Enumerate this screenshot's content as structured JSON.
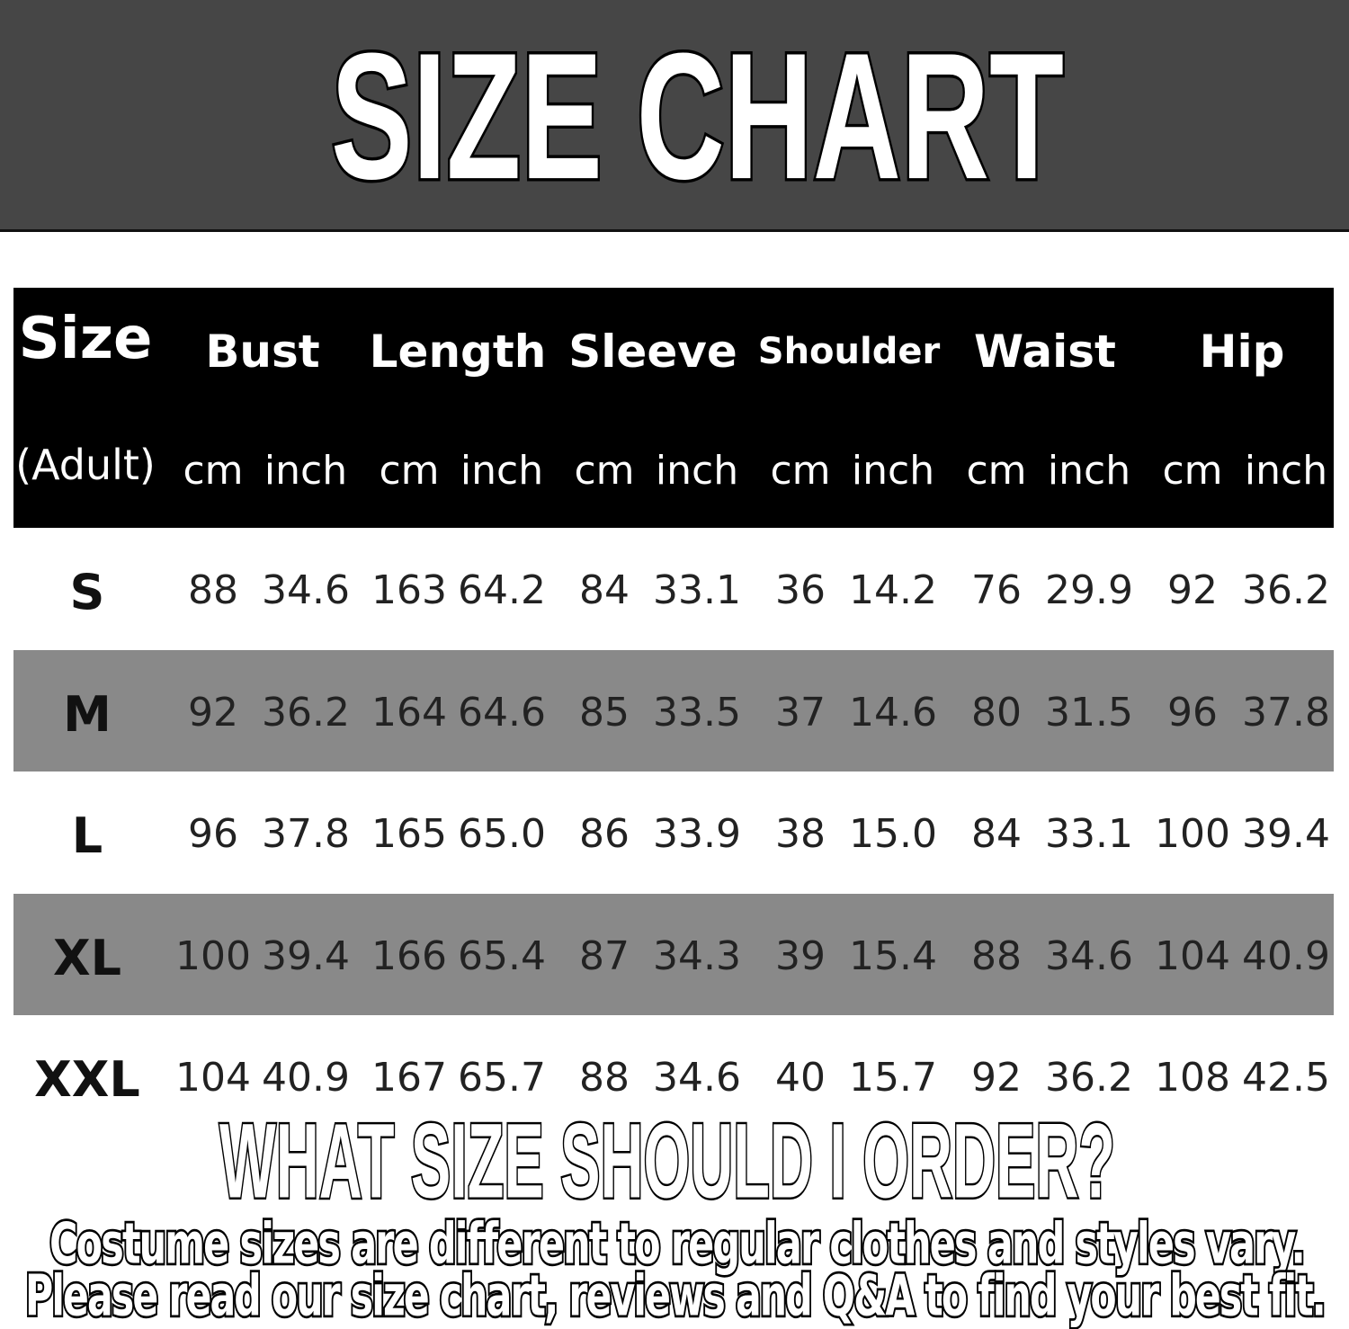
{
  "title": "SIZE CHART",
  "table": {
    "header_top": [
      "Size",
      "Bust",
      "Length",
      "Sleeve",
      "Shoulder",
      "Waist",
      "Hip"
    ],
    "header_sub_first": "(Adult)",
    "unit_cm": "cm",
    "unit_inch": "inch",
    "rows": [
      {
        "size": "S",
        "values": [
          "88",
          "34.6",
          "163",
          "64.2",
          "84",
          "33.1",
          "36",
          "14.2",
          "76",
          "29.9",
          "92",
          "36.2"
        ]
      },
      {
        "size": "M",
        "values": [
          "92",
          "36.2",
          "164",
          "64.6",
          "85",
          "33.5",
          "37",
          "14.6",
          "80",
          "31.5",
          "96",
          "37.8"
        ]
      },
      {
        "size": "L",
        "values": [
          "96",
          "37.8",
          "165",
          "65.0",
          "86",
          "33.9",
          "38",
          "15.0",
          "84",
          "33.1",
          "100",
          "39.4"
        ]
      },
      {
        "size": "XL",
        "values": [
          "100",
          "39.4",
          "166",
          "65.4",
          "87",
          "34.3",
          "39",
          "15.4",
          "88",
          "34.6",
          "104",
          "40.9"
        ]
      },
      {
        "size": "XXL",
        "values": [
          "104",
          "40.9",
          "167",
          "65.7",
          "88",
          "34.6",
          "40",
          "15.7",
          "92",
          "36.2",
          "108",
          "42.5"
        ]
      }
    ]
  },
  "footer": {
    "question": "WHAT SIZE SHOULD I ORDER?",
    "line1": "Costume sizes are different to regular clothes and styles vary.",
    "line2": "Please read our size chart, reviews and Q&A to find your best fit."
  },
  "colors": {
    "band": "#464646",
    "header": "#000000",
    "alt_row": "#898989"
  }
}
